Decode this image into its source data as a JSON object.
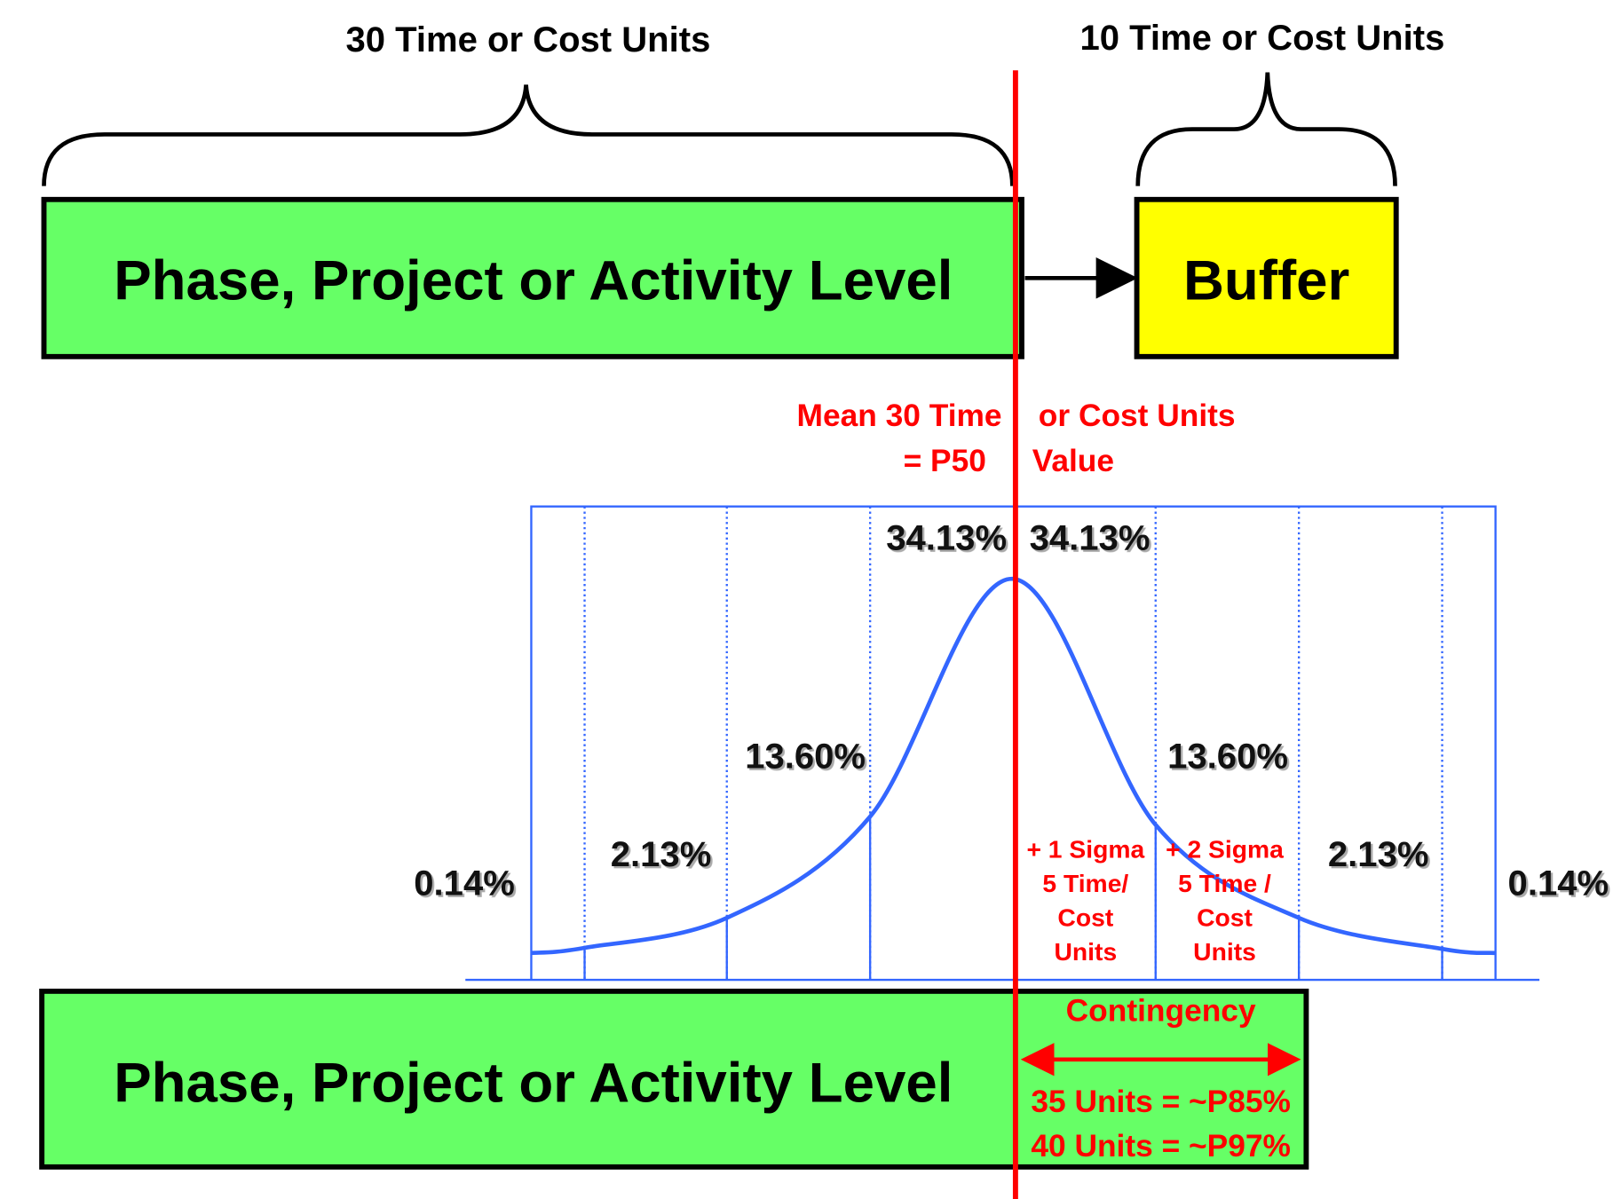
{
  "top_left_label": "30 Time or Cost Units",
  "top_right_label": "10 Time or Cost Units",
  "top_box": "Phase, Project or Activity Level",
  "buffer_box": "Buffer",
  "mean_label": {
    "line1_left": "Mean 30 Time",
    "line1_right": "or Cost Units",
    "line2_left": "= P50",
    "line2_right": "Value"
  },
  "percentages": {
    "center_left": "34.13%",
    "center_right": "34.13%",
    "second_left": "13.60%",
    "second_right": "13.60%",
    "third_left": "2.13%",
    "third_right": "2.13%",
    "outer_left": "0.14%",
    "outer_right": "0.14%"
  },
  "sigma1": [
    "+ 1 Sigma",
    "5 Time/",
    "Cost",
    "Units"
  ],
  "sigma2": [
    "+ 2 Sigma",
    "5 Time /",
    "Cost",
    "Units"
  ],
  "bottom_box": "Phase, Project or Activity Level",
  "contingency": "Contingency",
  "p85": "35 Units = ~P85%",
  "p97": "40 Units = ~P97%"
}
